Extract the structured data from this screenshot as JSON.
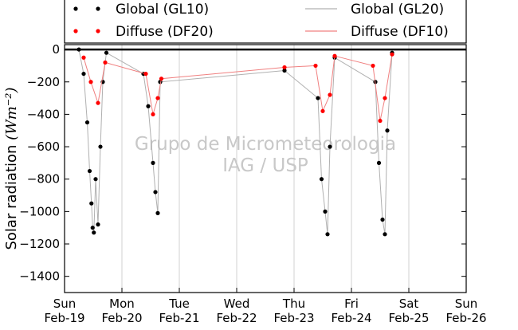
{
  "chart_data": {
    "type": "scatter",
    "title": "",
    "xlabel": "",
    "ylabel": "Solar radiation",
    "ylabel_unit": "(Wm⁻²)",
    "ylim": [
      -1500,
      30
    ],
    "xlim": [
      "2017-02-19",
      "2017-02-26"
    ],
    "yticks": [
      0,
      -200,
      -400,
      -600,
      -800,
      -1000,
      -1200,
      -1400
    ],
    "xticks": [
      {
        "day": "Sun",
        "date": "Feb-19"
      },
      {
        "day": "Mon",
        "date": "Feb-20"
      },
      {
        "day": "Tue",
        "date": "Feb-21"
      },
      {
        "day": "Wed",
        "date": "Feb-22"
      },
      {
        "day": "Thu",
        "date": "Feb-23"
      },
      {
        "day": "Fri",
        "date": "Feb-24"
      },
      {
        "day": "Sat",
        "date": "Feb-25"
      },
      {
        "day": "Sun",
        "date": "Feb-26"
      }
    ],
    "grid": "vertical",
    "legend_position": "top",
    "watermark": [
      "Grupo de Micrometeorologia",
      "IAG / USP"
    ],
    "series": [
      {
        "name": "Global (GL10)",
        "style": "markers",
        "color": "#000000",
        "points": [
          {
            "x": "2017-02-19 06:00",
            "y": 0
          },
          {
            "x": "2017-02-19 08:00",
            "y": -150
          },
          {
            "x": "2017-02-19 09:30",
            "y": -450
          },
          {
            "x": "2017-02-19 10:30",
            "y": -750
          },
          {
            "x": "2017-02-19 11:15",
            "y": -950
          },
          {
            "x": "2017-02-19 11:45",
            "y": -1100
          },
          {
            "x": "2017-02-19 12:15",
            "y": -1130
          },
          {
            "x": "2017-02-19 13:00",
            "y": -800
          },
          {
            "x": "2017-02-19 14:00",
            "y": -1080
          },
          {
            "x": "2017-02-19 15:00",
            "y": -600
          },
          {
            "x": "2017-02-19 16:00",
            "y": -200
          },
          {
            "x": "2017-02-19 17:30",
            "y": -20
          },
          {
            "x": "2017-02-20 09:00",
            "y": -150
          },
          {
            "x": "2017-02-20 11:00",
            "y": -350
          },
          {
            "x": "2017-02-20 13:00",
            "y": -700
          },
          {
            "x": "2017-02-20 14:00",
            "y": -880
          },
          {
            "x": "2017-02-20 15:00",
            "y": -1010
          },
          {
            "x": "2017-02-20 16:00",
            "y": -200
          },
          {
            "x": "2017-02-22 20:00",
            "y": -130
          },
          {
            "x": "2017-02-23 10:00",
            "y": -300
          },
          {
            "x": "2017-02-23 11:30",
            "y": -800
          },
          {
            "x": "2017-02-23 13:00",
            "y": -1000
          },
          {
            "x": "2017-02-23 14:00",
            "y": -1140
          },
          {
            "x": "2017-02-23 15:00",
            "y": -600
          },
          {
            "x": "2017-02-23 17:00",
            "y": -50
          },
          {
            "x": "2017-02-24 10:00",
            "y": -200
          },
          {
            "x": "2017-02-24 11:30",
            "y": -700
          },
          {
            "x": "2017-02-24 13:00",
            "y": -1050
          },
          {
            "x": "2017-02-24 14:00",
            "y": -1140
          },
          {
            "x": "2017-02-24 15:00",
            "y": -500
          },
          {
            "x": "2017-02-24 17:00",
            "y": -20
          }
        ]
      },
      {
        "name": "Diffuse (DF20)",
        "style": "markers",
        "color": "#ff0000",
        "points": [
          {
            "x": "2017-02-19 08:00",
            "y": -50
          },
          {
            "x": "2017-02-19 11:00",
            "y": -200
          },
          {
            "x": "2017-02-19 14:00",
            "y": -330
          },
          {
            "x": "2017-02-19 17:00",
            "y": -80
          },
          {
            "x": "2017-02-20 10:00",
            "y": -150
          },
          {
            "x": "2017-02-20 13:00",
            "y": -400
          },
          {
            "x": "2017-02-20 15:00",
            "y": -300
          },
          {
            "x": "2017-02-20 16:30",
            "y": -180
          },
          {
            "x": "2017-02-22 20:00",
            "y": -110
          },
          {
            "x": "2017-02-23 09:00",
            "y": -100
          },
          {
            "x": "2017-02-23 12:00",
            "y": -380
          },
          {
            "x": "2017-02-23 15:00",
            "y": -280
          },
          {
            "x": "2017-02-23 17:00",
            "y": -40
          },
          {
            "x": "2017-02-24 09:00",
            "y": -100
          },
          {
            "x": "2017-02-24 12:00",
            "y": -440
          },
          {
            "x": "2017-02-24 14:00",
            "y": -300
          },
          {
            "x": "2017-02-24 17:00",
            "y": -30
          }
        ]
      },
      {
        "name": "Global (GL20)",
        "style": "line",
        "color": "#b0b0b0",
        "points": []
      },
      {
        "name": "Diffuse (DF10)",
        "style": "line",
        "color": "#f08080",
        "points": []
      }
    ]
  }
}
